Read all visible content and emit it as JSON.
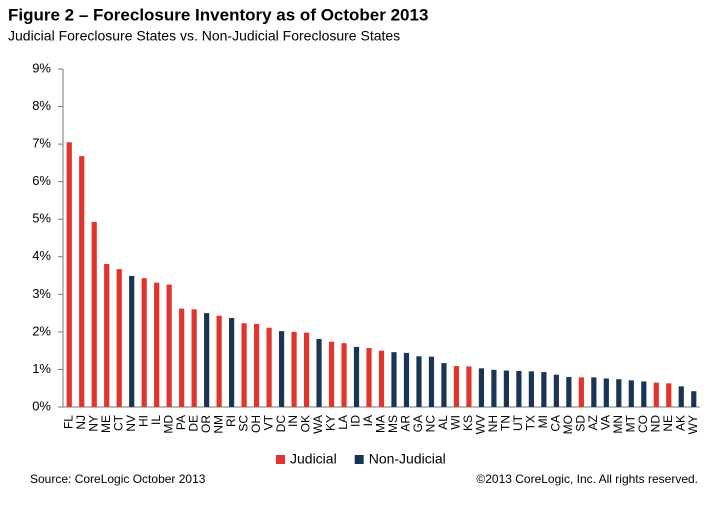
{
  "chart_data": {
    "type": "bar",
    "title": "Figure 2 – Foreclosure Inventory as of October 2013",
    "subtitle": "Judicial Foreclosure States vs. Non-Judicial Foreclosure States",
    "source": "Source: CoreLogic  October 2013",
    "copyright": "©2013 CoreLogic, Inc. All rights reserved.",
    "categories": [
      "FL",
      "NJ",
      "NY",
      "ME",
      "CT",
      "NV",
      "HI",
      "IL",
      "MD",
      "PA",
      "DE",
      "OR",
      "NM",
      "RI",
      "SC",
      "OH",
      "VT",
      "DC",
      "IN",
      "OK",
      "WA",
      "KY",
      "LA",
      "ID",
      "IA",
      "MA",
      "MS",
      "AR",
      "GA",
      "NC",
      "AL",
      "WI",
      "KS",
      "WV",
      "NH",
      "TN",
      "UT",
      "TX",
      "MI",
      "CA",
      "MO",
      "SD",
      "AZ",
      "VA",
      "MN",
      "MT",
      "CO",
      "ND",
      "NE",
      "AK",
      "WY"
    ],
    "series": [
      {
        "name": "Judicial",
        "color": "#e0342c",
        "values": [
          7.05,
          6.68,
          4.93,
          3.81,
          3.67,
          null,
          3.43,
          3.31,
          3.26,
          2.62,
          2.6,
          null,
          2.43,
          null,
          2.23,
          2.21,
          2.11,
          null,
          2.0,
          1.98,
          null,
          1.74,
          1.7,
          null,
          1.57,
          1.5,
          null,
          null,
          null,
          null,
          null,
          1.09,
          1.08,
          null,
          null,
          null,
          null,
          null,
          null,
          null,
          null,
          0.79,
          null,
          null,
          null,
          null,
          null,
          0.65,
          0.63,
          null,
          null
        ]
      },
      {
        "name": "Non-Judicial",
        "color": "#1a3553",
        "values": [
          null,
          null,
          null,
          null,
          null,
          3.49,
          null,
          null,
          null,
          null,
          null,
          2.5,
          null,
          2.37,
          null,
          null,
          null,
          2.02,
          null,
          null,
          1.81,
          null,
          null,
          1.6,
          null,
          null,
          1.46,
          1.44,
          1.35,
          1.34,
          1.17,
          null,
          null,
          1.03,
          0.99,
          0.97,
          0.96,
          0.95,
          0.93,
          0.86,
          0.8,
          null,
          0.79,
          0.76,
          0.74,
          0.71,
          0.68,
          null,
          null,
          0.55,
          0.42
        ]
      }
    ],
    "ylim": [
      0,
      9
    ],
    "yticks": [
      {
        "value": 0,
        "label": "0%"
      },
      {
        "value": 1,
        "label": "1%"
      },
      {
        "value": 2,
        "label": "2%"
      },
      {
        "value": 3,
        "label": "3%"
      },
      {
        "value": 4,
        "label": "4%"
      },
      {
        "value": 5,
        "label": "5%"
      },
      {
        "value": 6,
        "label": "6%"
      },
      {
        "value": 7,
        "label": "7%"
      },
      {
        "value": 8,
        "label": "8%"
      },
      {
        "value": 9,
        "label": "9%"
      }
    ],
    "grid": false
  }
}
